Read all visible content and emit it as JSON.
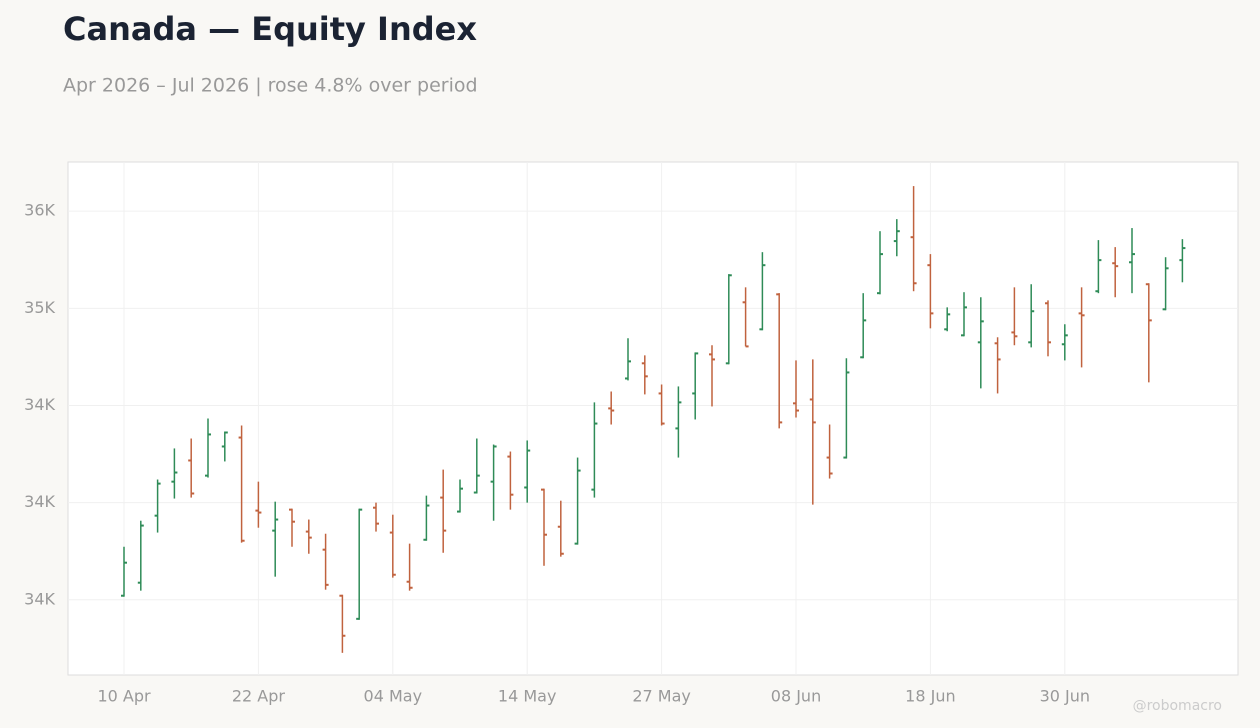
{
  "chart_data": {
    "type": "ohlc",
    "title": "Canada — Equity Index",
    "subtitle": "Apr 2026 – Jul 2026 | rose 4.8% over period",
    "watermark": "@robomacro",
    "categories": [
      "10 Apr",
      null,
      null,
      null,
      null,
      null,
      null,
      null,
      "22 Apr",
      null,
      null,
      null,
      null,
      null,
      null,
      null,
      "04 May",
      null,
      null,
      null,
      null,
      null,
      null,
      null,
      "14 May",
      null,
      null,
      null,
      null,
      null,
      null,
      null,
      "27 May",
      null,
      null,
      null,
      null,
      null,
      null,
      null,
      "08 Jun",
      null,
      null,
      null,
      null,
      null,
      null,
      null,
      "18 Jun",
      null,
      null,
      null,
      null,
      null,
      null,
      null,
      "30 Jun",
      null,
      null,
      null,
      null,
      null,
      null,
      null
    ],
    "open": [
      33521,
      33588,
      33933,
      34108,
      34217,
      34139,
      34289,
      34335,
      33959,
      33856,
      33964,
      33851,
      33758,
      33521,
      33402,
      33974,
      33846,
      33593,
      33809,
      34026,
      33954,
      34052,
      34108,
      34237,
      34078,
      34067,
      33876,
      33789,
      34067,
      34485,
      34639,
      34717,
      34562,
      34382,
      34562,
      34763,
      34717,
      35031,
      34892,
      35072,
      34511,
      34531,
      34232,
      34232,
      34748,
      35078,
      35346,
      35366,
      35222,
      34892,
      34861,
      34825,
      34820,
      34876,
      34825,
      35026,
      34815,
      34974,
      35088,
      35232,
      35237,
      35124,
      34995,
      35248
    ],
    "high": [
      33773,
      33907,
      34119,
      34279,
      34330,
      34433,
      34366,
      34397,
      34108,
      34005,
      33969,
      33913,
      33840,
      33526,
      33969,
      34000,
      33938,
      33789,
      34036,
      34170,
      34119,
      34330,
      34299,
      34263,
      34320,
      34072,
      34010,
      34232,
      34516,
      34572,
      34846,
      34758,
      34608,
      34598,
      34773,
      34810,
      35176,
      35108,
      35289,
      35078,
      34732,
      34737,
      34402,
      34743,
      35078,
      35397,
      35459,
      35629,
      35279,
      35005,
      35083,
      35057,
      34851,
      35108,
      35124,
      35041,
      34918,
      35108,
      35351,
      35315,
      35413,
      35129,
      35263,
      35356
    ],
    "low": [
      33516,
      33547,
      33846,
      34021,
      34026,
      34129,
      34212,
      33794,
      33871,
      33619,
      33773,
      33737,
      33552,
      33227,
      33397,
      33851,
      33614,
      33547,
      33804,
      33742,
      33949,
      34047,
      33907,
      33964,
      34000,
      33675,
      33722,
      33784,
      34026,
      34402,
      34629,
      34557,
      34397,
      34232,
      34428,
      34495,
      34712,
      34804,
      34887,
      34382,
      34438,
      33990,
      34124,
      34227,
      34743,
      35072,
      35268,
      35088,
      34897,
      34882,
      34856,
      34588,
      34562,
      34810,
      34799,
      34753,
      34732,
      34696,
      35078,
      35057,
      35078,
      34619,
      34990,
      35134
    ],
    "close": [
      33691,
      33882,
      34098,
      34155,
      34047,
      34351,
      34361,
      33804,
      33949,
      33913,
      33902,
      33820,
      33577,
      33315,
      33964,
      33892,
      33629,
      33562,
      33985,
      33856,
      34072,
      34139,
      34289,
      34041,
      34268,
      33835,
      33737,
      34165,
      34407,
      34474,
      34727,
      34650,
      34407,
      34516,
      34768,
      34737,
      35170,
      34804,
      35222,
      34413,
      34474,
      34413,
      34150,
      34670,
      34938,
      35279,
      35397,
      35129,
      34974,
      34969,
      35005,
      34933,
      34737,
      34856,
      34985,
      34825,
      34861,
      34964,
      35248,
      35217,
      35279,
      34938,
      35206,
      35310
    ],
    "up_color": "#2e8b57",
    "down_color": "#c0623e",
    "ylim": [
      33113,
      35753
    ],
    "yticks": [
      {
        "value": 33500,
        "label": "34K"
      },
      {
        "value": 34000,
        "label": "34K"
      },
      {
        "value": 34500,
        "label": "34K"
      },
      {
        "value": 35000,
        "label": "35K"
      },
      {
        "value": 35500,
        "label": "36K"
      }
    ],
    "grid": true
  }
}
